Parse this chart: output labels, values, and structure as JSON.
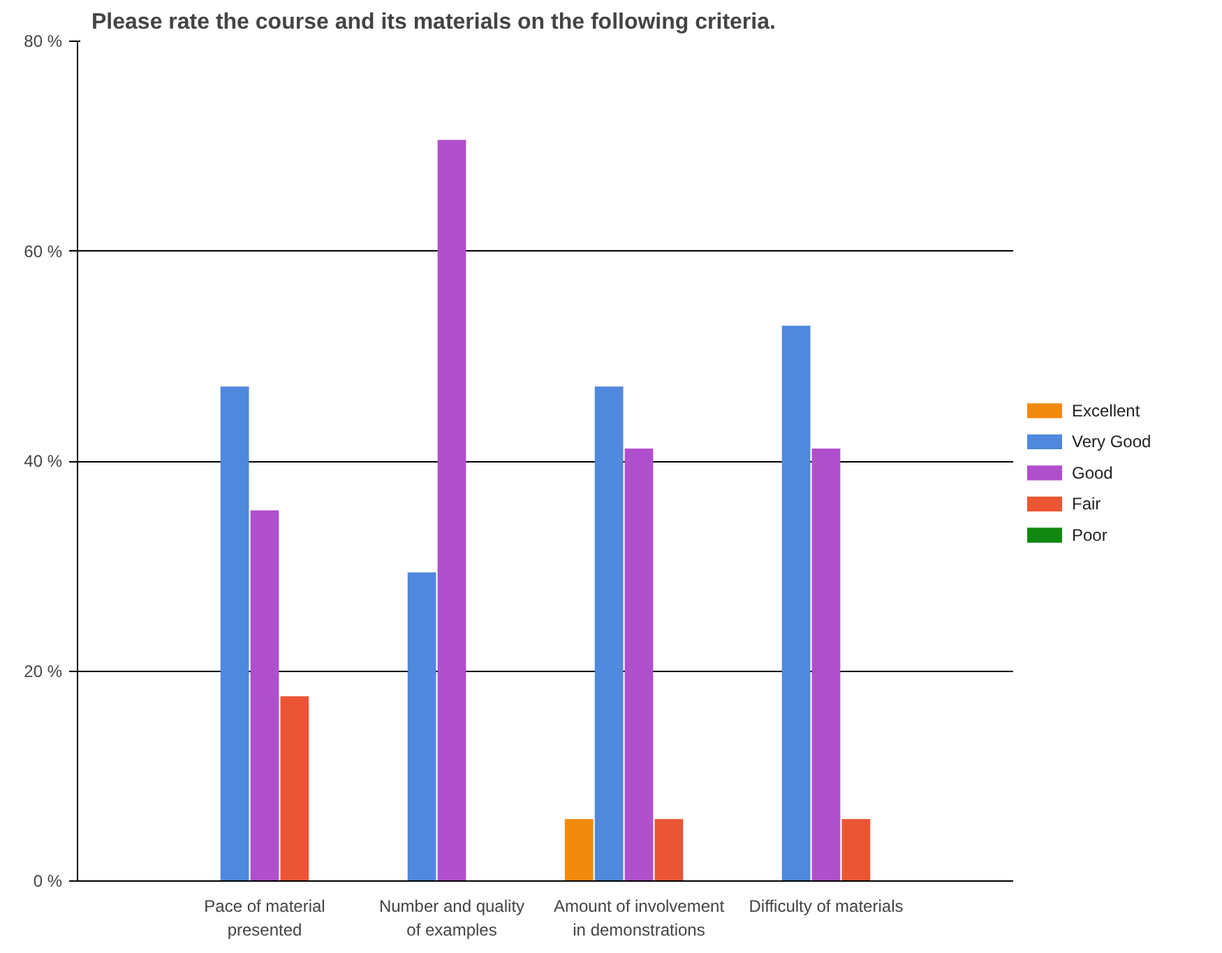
{
  "chart_data": {
    "type": "bar",
    "title": "Please rate the course and its materials on the following criteria.",
    "categories": [
      "Pace of material\npresented",
      "Number and quality\nof examples",
      "Amount of involvement\nin demonstrations",
      "Difficulty of materials"
    ],
    "series": [
      {
        "name": "Excellent",
        "color": "#f28a0f",
        "values": [
          0,
          0,
          5.9,
          0
        ]
      },
      {
        "name": "Very Good",
        "color": "#4f88dd",
        "values": [
          47.1,
          29.4,
          47.1,
          52.9
        ]
      },
      {
        "name": "Good",
        "color": "#b04fcc",
        "values": [
          35.3,
          70.6,
          41.2,
          41.2
        ]
      },
      {
        "name": "Fair",
        "color": "#ec5533",
        "values": [
          17.6,
          0,
          5.9,
          5.9
        ]
      },
      {
        "name": "Poor",
        "color": "#118811",
        "values": [
          0,
          0,
          0,
          0
        ]
      }
    ],
    "ylim": [
      0,
      80
    ],
    "yticks": [
      {
        "value": 0,
        "label": "0 %"
      },
      {
        "value": 20,
        "label": "20 %"
      },
      {
        "value": 40,
        "label": "40 %"
      },
      {
        "value": 60,
        "label": "60 %"
      },
      {
        "value": 80,
        "label": "80 %"
      }
    ],
    "grid": "y",
    "legend": "right"
  }
}
